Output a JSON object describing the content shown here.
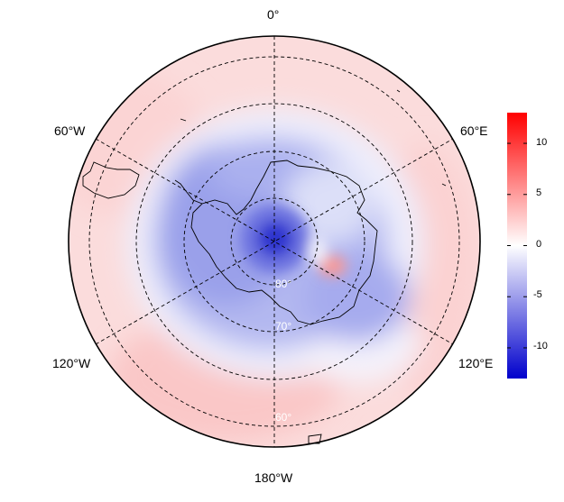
{
  "map": {
    "projection": "south polar stereographic",
    "longitude_labels": {
      "top": "0°",
      "upper_left": "60°W",
      "upper_right": "60°E",
      "lower_left": "120°W",
      "lower_right": "120°E",
      "bottom": "180°W"
    },
    "latitude_labels": [
      "80°",
      "70°",
      "60°"
    ],
    "grid": "dashed graticule (meridians every 60°, parallels every 10°)",
    "coastlines": "Antarctica, Antarctic Peninsula, South America tip, sub-Antarctic islands"
  },
  "colorbar": {
    "ticks": [
      "10",
      "5",
      "0",
      "-5",
      "-10"
    ],
    "range": [
      -13,
      13
    ],
    "colors": {
      "max": "#ff0000",
      "mid": "#ffffff",
      "min": "#0000cc"
    }
  }
}
